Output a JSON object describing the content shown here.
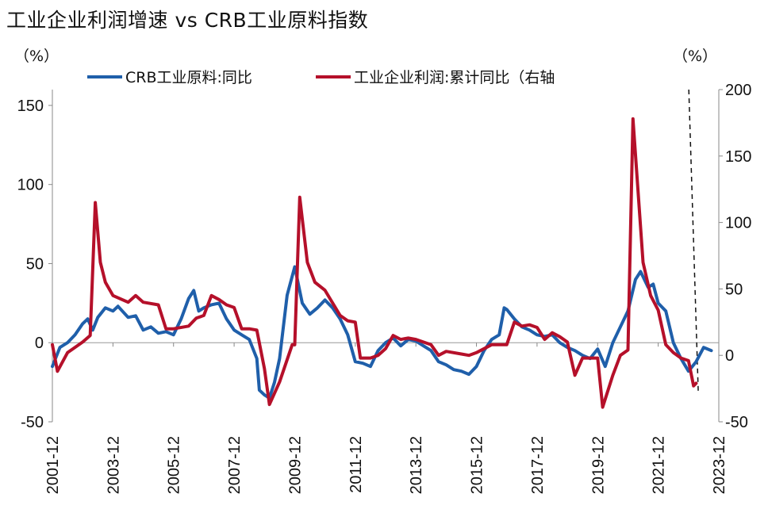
{
  "chart_data": {
    "type": "line",
    "title": "工业企业利润增速 vs CRB工业原料指数",
    "left_unit": "（%）",
    "right_unit": "（%）",
    "legend_placement": "top",
    "grid": false,
    "x_tick_labels": [
      "2001-12",
      "2003-12",
      "2005-12",
      "2007-12",
      "2009-12",
      "2011-12",
      "2013-12",
      "2015-12",
      "2017-12",
      "2019-12",
      "2021-12",
      "2023-12"
    ],
    "x_range": [
      "2001-12",
      "2023-12"
    ],
    "y_left": {
      "min": -50,
      "max": 160,
      "ticks": [
        -50,
        0,
        50,
        100,
        150
      ]
    },
    "y_right": {
      "min": -50,
      "max": 200,
      "ticks": [
        -50,
        0,
        50,
        100,
        150,
        200
      ]
    },
    "vertical_marker": "2023-02",
    "series": [
      {
        "name": "CRB工业原料:同比",
        "axis": "left",
        "color": "#1f5faa",
        "points": [
          [
            "2001-12",
            -15
          ],
          [
            "2002-03",
            -3
          ],
          [
            "2002-06",
            0
          ],
          [
            "2002-09",
            5
          ],
          [
            "2002-12",
            12
          ],
          [
            "2003-02",
            15
          ],
          [
            "2003-04",
            8
          ],
          [
            "2003-06",
            16
          ],
          [
            "2003-09",
            22
          ],
          [
            "2003-12",
            20
          ],
          [
            "2004-02",
            23
          ],
          [
            "2004-06",
            16
          ],
          [
            "2004-09",
            17
          ],
          [
            "2004-12",
            8
          ],
          [
            "2005-03",
            10
          ],
          [
            "2005-06",
            6
          ],
          [
            "2005-09",
            7
          ],
          [
            "2005-12",
            5
          ],
          [
            "2006-03",
            15
          ],
          [
            "2006-06",
            28
          ],
          [
            "2006-08",
            33
          ],
          [
            "2006-10",
            20
          ],
          [
            "2006-12",
            22
          ],
          [
            "2007-03",
            24
          ],
          [
            "2007-06",
            25
          ],
          [
            "2007-09",
            15
          ],
          [
            "2007-12",
            8
          ],
          [
            "2008-03",
            5
          ],
          [
            "2008-06",
            2
          ],
          [
            "2008-09",
            -10
          ],
          [
            "2008-10",
            -30
          ],
          [
            "2008-12",
            -33
          ],
          [
            "2009-02",
            -35
          ],
          [
            "2009-04",
            -25
          ],
          [
            "2009-06",
            -10
          ],
          [
            "2009-09",
            30
          ],
          [
            "2009-12",
            48
          ],
          [
            "2010-03",
            25
          ],
          [
            "2010-06",
            18
          ],
          [
            "2010-09",
            22
          ],
          [
            "2010-12",
            27
          ],
          [
            "2011-03",
            22
          ],
          [
            "2011-06",
            15
          ],
          [
            "2011-09",
            5
          ],
          [
            "2011-12",
            -12
          ],
          [
            "2012-03",
            -13
          ],
          [
            "2012-06",
            -15
          ],
          [
            "2012-09",
            -5
          ],
          [
            "2012-12",
            0
          ],
          [
            "2013-03",
            3
          ],
          [
            "2013-06",
            -2
          ],
          [
            "2013-09",
            2
          ],
          [
            "2013-12",
            1
          ],
          [
            "2014-03",
            -2
          ],
          [
            "2014-06",
            -5
          ],
          [
            "2014-09",
            -12
          ],
          [
            "2014-12",
            -14
          ],
          [
            "2015-03",
            -17
          ],
          [
            "2015-06",
            -18
          ],
          [
            "2015-09",
            -20
          ],
          [
            "2015-12",
            -15
          ],
          [
            "2016-03",
            -5
          ],
          [
            "2016-06",
            2
          ],
          [
            "2016-09",
            5
          ],
          [
            "2016-11",
            22
          ],
          [
            "2016-12",
            21
          ],
          [
            "2017-03",
            15
          ],
          [
            "2017-06",
            10
          ],
          [
            "2017-09",
            8
          ],
          [
            "2017-12",
            5
          ],
          [
            "2018-03",
            4
          ],
          [
            "2018-06",
            5
          ],
          [
            "2018-09",
            0
          ],
          [
            "2018-12",
            -3
          ],
          [
            "2019-03",
            -5
          ],
          [
            "2019-06",
            -8
          ],
          [
            "2019-09",
            -10
          ],
          [
            "2019-12",
            -4
          ],
          [
            "2020-03",
            -15
          ],
          [
            "2020-06",
            0
          ],
          [
            "2020-09",
            10
          ],
          [
            "2020-12",
            20
          ],
          [
            "2021-03",
            40
          ],
          [
            "2021-05",
            45
          ],
          [
            "2021-08",
            35
          ],
          [
            "2021-10",
            37
          ],
          [
            "2021-12",
            25
          ],
          [
            "2022-03",
            20
          ],
          [
            "2022-06",
            0
          ],
          [
            "2022-09",
            -10
          ],
          [
            "2022-12",
            -18
          ],
          [
            "2023-03",
            -12
          ],
          [
            "2023-06",
            -3
          ],
          [
            "2023-09",
            -5
          ]
        ]
      },
      {
        "name": "工业企业利润:累计同比（右轴",
        "axis": "right",
        "color": "#b5102a",
        "points": [
          [
            "2001-12",
            8
          ],
          [
            "2002-02",
            -12
          ],
          [
            "2002-06",
            2
          ],
          [
            "2002-09",
            6
          ],
          [
            "2002-12",
            10
          ],
          [
            "2003-03",
            15
          ],
          [
            "2003-05",
            115
          ],
          [
            "2003-07",
            70
          ],
          [
            "2003-09",
            55
          ],
          [
            "2003-12",
            45
          ],
          [
            "2004-06",
            40
          ],
          [
            "2004-09",
            45
          ],
          [
            "2004-12",
            40
          ],
          [
            "2005-06",
            38
          ],
          [
            "2005-09",
            20
          ],
          [
            "2005-12",
            20
          ],
          [
            "2006-06",
            22
          ],
          [
            "2006-09",
            28
          ],
          [
            "2006-12",
            30
          ],
          [
            "2007-03",
            45
          ],
          [
            "2007-06",
            42
          ],
          [
            "2007-09",
            38
          ],
          [
            "2007-12",
            36
          ],
          [
            "2008-03",
            20
          ],
          [
            "2008-06",
            20
          ],
          [
            "2008-09",
            19
          ],
          [
            "2008-12",
            -10
          ],
          [
            "2009-02",
            -37
          ],
          [
            "2009-06",
            -20
          ],
          [
            "2009-11",
            8
          ],
          [
            "2009-12",
            8
          ],
          [
            "2010-02",
            119
          ],
          [
            "2010-05",
            70
          ],
          [
            "2010-08",
            55
          ],
          [
            "2010-12",
            49
          ],
          [
            "2011-06",
            30
          ],
          [
            "2011-09",
            26
          ],
          [
            "2011-12",
            25
          ],
          [
            "2012-02",
            -2
          ],
          [
            "2012-06",
            -2
          ],
          [
            "2012-09",
            0
          ],
          [
            "2012-12",
            5
          ],
          [
            "2013-03",
            15
          ],
          [
            "2013-06",
            12
          ],
          [
            "2013-09",
            13
          ],
          [
            "2013-12",
            12
          ],
          [
            "2014-06",
            8
          ],
          [
            "2014-09",
            0
          ],
          [
            "2014-12",
            3
          ],
          [
            "2015-06",
            1
          ],
          [
            "2015-09",
            0
          ],
          [
            "2015-12",
            2
          ],
          [
            "2016-06",
            8
          ],
          [
            "2016-12",
            8
          ],
          [
            "2017-03",
            25
          ],
          [
            "2017-06",
            22
          ],
          [
            "2017-09",
            23
          ],
          [
            "2017-12",
            21
          ],
          [
            "2018-03",
            12
          ],
          [
            "2018-06",
            17
          ],
          [
            "2018-09",
            14
          ],
          [
            "2018-12",
            10
          ],
          [
            "2019-03",
            -15
          ],
          [
            "2019-06",
            -2
          ],
          [
            "2019-09",
            -2
          ],
          [
            "2019-12",
            -2
          ],
          [
            "2020-02",
            -39
          ],
          [
            "2020-06",
            -15
          ],
          [
            "2020-09",
            0
          ],
          [
            "2020-12",
            4
          ],
          [
            "2021-02",
            178
          ],
          [
            "2021-06",
            70
          ],
          [
            "2021-09",
            45
          ],
          [
            "2021-12",
            34
          ],
          [
            "2022-03",
            8
          ],
          [
            "2022-06",
            2
          ],
          [
            "2022-09",
            -2
          ],
          [
            "2022-12",
            -4
          ],
          [
            "2023-02",
            -23
          ],
          [
            "2023-03",
            -21
          ]
        ]
      }
    ]
  }
}
